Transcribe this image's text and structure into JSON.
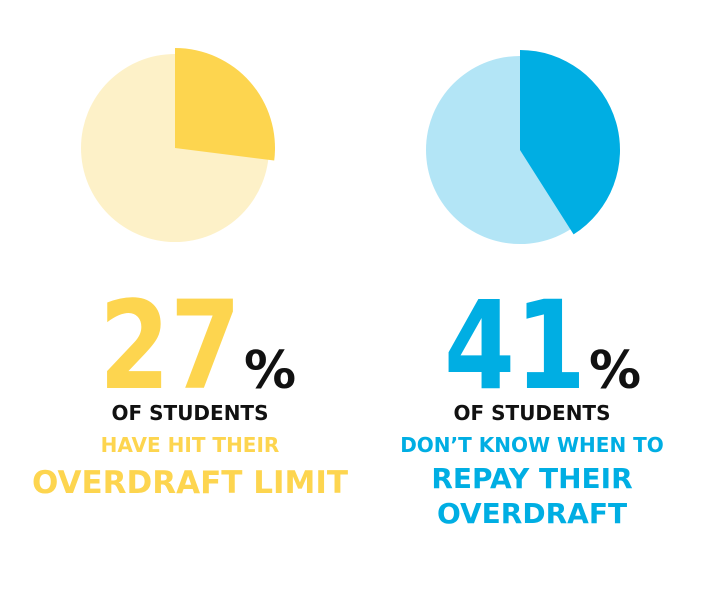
{
  "chart_data": [
    {
      "type": "pie",
      "values": [
        27
      ],
      "unit_label": "%",
      "color": "#fdd54f",
      "background_color": "#fdf1c8",
      "caption": [
        {
          "text": "OF STUDENTS",
          "color": "#111111"
        },
        {
          "text": "HAVE HIT THEIR",
          "color": "#fdd54f"
        },
        {
          "text": "OVERDRAFT LIMIT",
          "color": "#fdd54f"
        }
      ]
    },
    {
      "type": "pie",
      "values": [
        41
      ],
      "unit_label": "%",
      "color": "#00aee3",
      "background_color": "#b3e5f6",
      "caption": [
        {
          "text": "OF STUDENTS",
          "color": "#111111"
        },
        {
          "text": "DON’T KNOW WHEN TO",
          "color": "#00aee3"
        },
        {
          "text": "REPAY THEIR",
          "color": "#00aee3"
        },
        {
          "text": "OVERDRAFT",
          "color": "#00aee3"
        }
      ]
    }
  ]
}
